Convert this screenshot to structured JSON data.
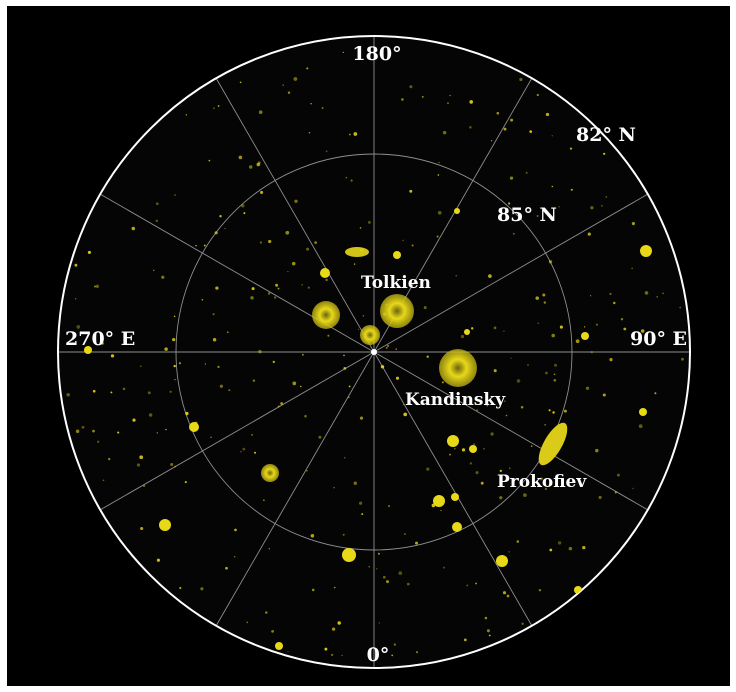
{
  "map": {
    "labels": {
      "lon_180": "180°",
      "lon_0": "0°",
      "lon_270": "270° E",
      "lon_90": "90° E",
      "lat_82": "82° N",
      "lat_85": "85° N"
    },
    "features": {
      "tolkien": "Tolkien",
      "kandinsky": "Kandinsky",
      "prokofiev": "Prokofiev"
    },
    "colors": {
      "background": "#000000",
      "grid": "#bdbdbd",
      "deposit": "#f2e21a",
      "label": "#ffffff"
    }
  }
}
